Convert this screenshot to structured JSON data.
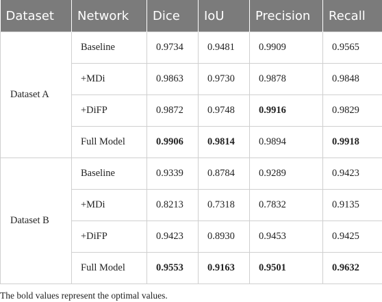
{
  "table": {
    "header": [
      "Dataset",
      "Network",
      "Dice",
      "IoU",
      "Precision",
      "Recall"
    ],
    "groups": [
      {
        "name": "Dataset A",
        "rows": [
          {
            "network": "Baseline",
            "cells": [
              "0.9734",
              "0.9481",
              "0.9909",
              "0.9565"
            ],
            "bold": [
              false,
              false,
              false,
              false
            ]
          },
          {
            "network": "+MDi",
            "cells": [
              "0.9863",
              "0.9730",
              "0.9878",
              "0.9848"
            ],
            "bold": [
              false,
              false,
              false,
              false
            ]
          },
          {
            "network": "+DiFP",
            "cells": [
              "0.9872",
              "0.9748",
              "0.9916",
              "0.9829"
            ],
            "bold": [
              false,
              false,
              true,
              false
            ]
          },
          {
            "network": "Full Model",
            "cells": [
              "0.9906",
              "0.9814",
              "0.9894",
              "0.9918"
            ],
            "bold": [
              true,
              true,
              false,
              true
            ]
          }
        ]
      },
      {
        "name": "Dataset B",
        "rows": [
          {
            "network": "Baseline",
            "cells": [
              "0.9339",
              "0.8784",
              "0.9289",
              "0.9423"
            ],
            "bold": [
              false,
              false,
              false,
              false
            ]
          },
          {
            "network": "+MDi",
            "cells": [
              "0.8213",
              "0.7318",
              "0.7832",
              "0.9135"
            ],
            "bold": [
              false,
              false,
              false,
              false
            ]
          },
          {
            "network": "+DiFP",
            "cells": [
              "0.9423",
              "0.8930",
              "0.9453",
              "0.9425"
            ],
            "bold": [
              false,
              false,
              false,
              false
            ]
          },
          {
            "network": "Full Model",
            "cells": [
              "0.9553",
              "0.9163",
              "0.9501",
              "0.9632"
            ],
            "bold": [
              true,
              true,
              true,
              true
            ]
          }
        ]
      }
    ]
  },
  "footnote": "The bold values represent the optimal values."
}
